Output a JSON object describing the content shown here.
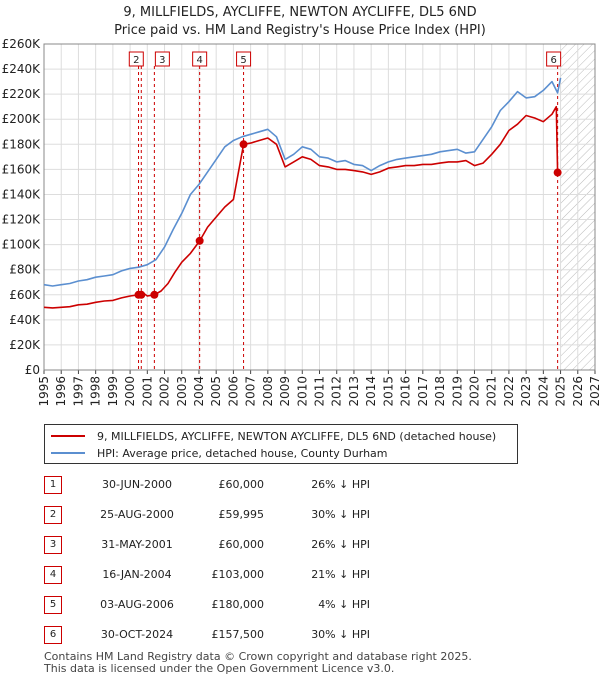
{
  "title_line1": "9, MILLFIELDS, AYCLIFFE, NEWTON AYCLIFFE, DL5 6ND",
  "title_line2": "Price paid vs. HM Land Registry's House Price Index (HPI)",
  "colors": {
    "price_paid": "#cc0000",
    "hpi": "#5b8fd0",
    "grid": "#dddddd",
    "hatch": "#bbbbbb"
  },
  "legend": {
    "price_paid_label": "9, MILLFIELDS, AYCLIFFE, NEWTON AYCLIFFE, DL5 6ND (detached house)",
    "hpi_label": "HPI: Average price, detached house, County Durham"
  },
  "chart_data": {
    "type": "line",
    "title": "9, MILLFIELDS, AYCLIFFE, NEWTON AYCLIFFE, DL5 6ND - Price paid vs. HM Land Registry's House Price Index (HPI)",
    "xlabel": "",
    "ylabel": "",
    "xlim": [
      1995,
      2027
    ],
    "ylim": [
      0,
      260000
    ],
    "x_ticks": [
      "1995",
      "1996",
      "1997",
      "1998",
      "1999",
      "2000",
      "2001",
      "2002",
      "2003",
      "2004",
      "2005",
      "2006",
      "2007",
      "2008",
      "2009",
      "2010",
      "2011",
      "2012",
      "2013",
      "2014",
      "2015",
      "2016",
      "2017",
      "2018",
      "2019",
      "2020",
      "2021",
      "2022",
      "2023",
      "2024",
      "2025",
      "2026",
      "2027"
    ],
    "y_ticks": [
      "£0",
      "£20K",
      "£40K",
      "£60K",
      "£80K",
      "£100K",
      "£120K",
      "£140K",
      "£160K",
      "£180K",
      "£200K",
      "£220K",
      "£240K",
      "£260K"
    ],
    "hatched_future_from": 2025.0,
    "series": [
      {
        "name": "HPI: Average price, detached house, County Durham",
        "x": [
          1995.0,
          1995.5,
          1996.0,
          1996.5,
          1997.0,
          1997.5,
          1998.0,
          1998.5,
          1999.0,
          1999.5,
          2000.0,
          2000.5,
          2001.0,
          2001.5,
          2002.0,
          2002.5,
          2003.0,
          2003.5,
          2004.0,
          2004.5,
          2005.0,
          2005.5,
          2006.0,
          2006.5,
          2007.0,
          2007.5,
          2008.0,
          2008.5,
          2009.0,
          2009.5,
          2010.0,
          2010.5,
          2011.0,
          2011.5,
          2012.0,
          2012.5,
          2013.0,
          2013.5,
          2014.0,
          2014.5,
          2015.0,
          2015.5,
          2016.0,
          2016.5,
          2017.0,
          2017.5,
          2018.0,
          2018.5,
          2019.0,
          2019.5,
          2020.0,
          2020.5,
          2021.0,
          2021.5,
          2022.0,
          2022.5,
          2023.0,
          2023.5,
          2024.0,
          2024.5,
          2024.83,
          2025.0
        ],
        "values": [
          68000,
          67000,
          68000,
          69000,
          71000,
          72000,
          74000,
          75000,
          76000,
          79000,
          81000,
          82000,
          84000,
          88000,
          98000,
          112000,
          125000,
          140000,
          148000,
          158000,
          168000,
          178000,
          183000,
          186000,
          188000,
          190000,
          192000,
          186000,
          168000,
          172000,
          178000,
          176000,
          170000,
          169000,
          166000,
          167000,
          164000,
          163000,
          159000,
          163000,
          166000,
          168000,
          169000,
          170000,
          171000,
          172000,
          174000,
          175000,
          176000,
          173000,
          174000,
          184000,
          194000,
          207000,
          214000,
          222000,
          217000,
          218000,
          223000,
          230000,
          221000,
          233000
        ]
      },
      {
        "name": "9, MILLFIELDS, AYCLIFFE, NEWTON AYCLIFFE, DL5 6ND (detached house)",
        "x": [
          1995.0,
          1995.5,
          1996.0,
          1996.5,
          1997.0,
          1997.5,
          1998.0,
          1998.5,
          1999.0,
          1999.5,
          2000.0,
          2000.49,
          2000.65,
          2000.8,
          2001.0,
          2001.41,
          2001.8,
          2002.2,
          2002.6,
          2003.0,
          2003.5,
          2004.04,
          2004.5,
          2005.0,
          2005.5,
          2006.0,
          2006.59,
          2007.0,
          2007.5,
          2008.0,
          2008.5,
          2009.0,
          2009.5,
          2010.0,
          2010.5,
          2011.0,
          2011.5,
          2012.0,
          2012.5,
          2013.0,
          2013.5,
          2014.0,
          2014.5,
          2015.0,
          2015.5,
          2016.0,
          2016.5,
          2017.0,
          2017.5,
          2018.0,
          2018.5,
          2019.0,
          2019.5,
          2020.0,
          2020.5,
          2021.0,
          2021.5,
          2022.0,
          2022.5,
          2023.0,
          2023.5,
          2024.0,
          2024.5,
          2024.75,
          2024.83,
          2025.0
        ],
        "values": [
          50000,
          49500,
          50000,
          50500,
          52000,
          52500,
          54000,
          55000,
          55500,
          57500,
          59000,
          60000,
          59995,
          61000,
          59000,
          60000,
          63000,
          69000,
          78000,
          86000,
          93000,
          103000,
          114000,
          122000,
          130000,
          136000,
          180000,
          181000,
          183000,
          185000,
          180000,
          162000,
          166000,
          170000,
          168000,
          163000,
          162000,
          160000,
          160000,
          159000,
          158000,
          156000,
          158000,
          161000,
          162000,
          163000,
          163000,
          164000,
          164000,
          165000,
          166000,
          166000,
          167000,
          163000,
          165000,
          172000,
          180000,
          191000,
          196000,
          203000,
          201000,
          198000,
          204000,
          210000,
          157500,
          158000
        ]
      }
    ],
    "transactions": [
      {
        "id": "1",
        "date": "30-JUN-2000",
        "x": 2000.49,
        "price": 60000,
        "price_label": "£60,000",
        "hpi_diff": "26% ↓ HPI"
      },
      {
        "id": "2",
        "date": "25-AUG-2000",
        "x": 2000.65,
        "price": 59995,
        "price_label": "£59,995",
        "hpi_diff": "30% ↓ HPI"
      },
      {
        "id": "3",
        "date": "31-MAY-2001",
        "x": 2001.41,
        "price": 60000,
        "price_label": "£60,000",
        "hpi_diff": "26% ↓ HPI"
      },
      {
        "id": "4",
        "date": "16-JAN-2004",
        "x": 2004.04,
        "price": 103000,
        "price_label": "£103,000",
        "hpi_diff": "21% ↓ HPI"
      },
      {
        "id": "5",
        "date": "03-AUG-2006",
        "x": 2006.59,
        "price": 180000,
        "price_label": "£180,000",
        "hpi_diff": "4% ↓ HPI"
      },
      {
        "id": "6",
        "date": "30-OCT-2024",
        "x": 2024.83,
        "price": 157500,
        "price_label": "£157,500",
        "hpi_diff": "30% ↓ HPI"
      }
    ]
  },
  "footer_line1": "Contains HM Land Registry data © Crown copyright and database right 2025.",
  "footer_line2": "This data is licensed under the Open Government Licence v3.0."
}
